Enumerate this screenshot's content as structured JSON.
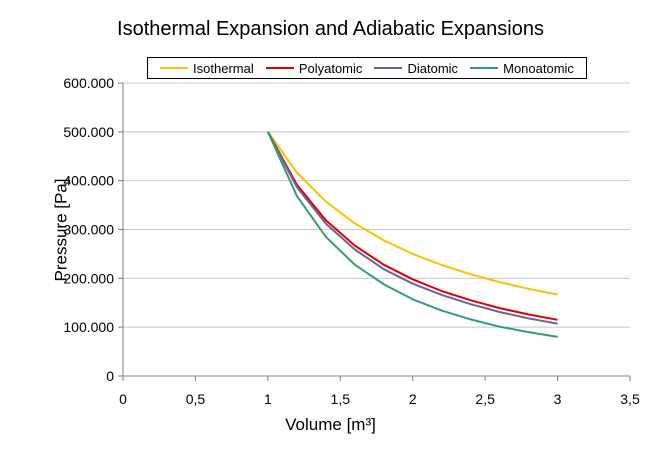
{
  "chart_data": {
    "type": "line",
    "title": "Isothermal Expansion and Adiabatic Expansions",
    "xlabel": "Volume [m³]",
    "ylabel": "Pressure  [Pa]",
    "xlim": [
      0,
      3.5
    ],
    "ylim": [
      0,
      600000
    ],
    "x_ticks": [
      0,
      0.5,
      1,
      1.5,
      2,
      2.5,
      3,
      3.5
    ],
    "x_tick_labels": [
      "0",
      "0,5",
      "1",
      "1,5",
      "2",
      "2,5",
      "3",
      "3,5"
    ],
    "y_ticks": [
      0,
      100000,
      200000,
      300000,
      400000,
      500000,
      600000
    ],
    "y_tick_labels": [
      "0",
      "100.000",
      "200.000",
      "300.000",
      "400.000",
      "500.000",
      "600.000"
    ],
    "grid": "horizontal",
    "legend_position": "top",
    "x": [
      1,
      1.2,
      1.4,
      1.6,
      1.8,
      2,
      2.2,
      2.4,
      2.6,
      2.8,
      3
    ],
    "series": [
      {
        "name": "Isothermal",
        "color": "#FFC000",
        "values": [
          500000,
          416700,
          357100,
          312500,
          277800,
          250000,
          227300,
          208300,
          192300,
          178600,
          166700
        ]
      },
      {
        "name": "Polyatomic",
        "color": "#E00000",
        "values": [
          500000,
          392000,
          319000,
          267000,
          228000,
          198000,
          174000,
          155000,
          139000,
          126000,
          115000
        ]
      },
      {
        "name": "Diatomic",
        "color": "#7060A0",
        "values": [
          500000,
          387000,
          312000,
          259000,
          219000,
          189000,
          166000,
          147000,
          131000,
          118000,
          107000
        ]
      },
      {
        "name": "Monoatomic",
        "color": "#30A070",
        "values": [
          500000,
          369000,
          285000,
          228000,
          188000,
          157000,
          134000,
          116000,
          101000,
          90000,
          80000
        ]
      }
    ]
  }
}
